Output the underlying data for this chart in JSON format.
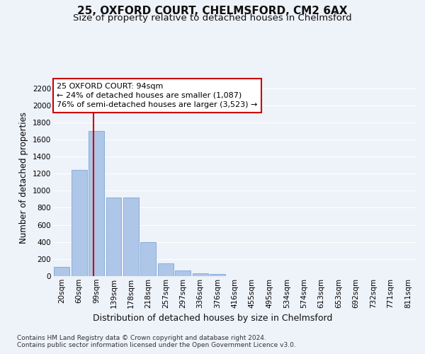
{
  "title1": "25, OXFORD COURT, CHELMSFORD, CM2 6AX",
  "title2": "Size of property relative to detached houses in Chelmsford",
  "xlabel": "Distribution of detached houses by size in Chelmsford",
  "ylabel": "Number of detached properties",
  "annotation_title": "25 OXFORD COURT: 94sqm",
  "annotation_line1": "← 24% of detached houses are smaller (1,087)",
  "annotation_line2": "76% of semi-detached houses are larger (3,523) →",
  "footer1": "Contains HM Land Registry data © Crown copyright and database right 2024.",
  "footer2": "Contains public sector information licensed under the Open Government Licence v3.0.",
  "categories": [
    "20sqm",
    "60sqm",
    "99sqm",
    "139sqm",
    "178sqm",
    "218sqm",
    "257sqm",
    "297sqm",
    "336sqm",
    "376sqm",
    "416sqm",
    "455sqm",
    "495sqm",
    "534sqm",
    "574sqm",
    "613sqm",
    "653sqm",
    "692sqm",
    "732sqm",
    "771sqm",
    "811sqm"
  ],
  "values": [
    110,
    1240,
    1700,
    920,
    920,
    400,
    150,
    65,
    35,
    25,
    0,
    0,
    0,
    0,
    0,
    0,
    0,
    0,
    0,
    0,
    0
  ],
  "bar_color": "#aec6e8",
  "bar_edge_color": "#7ba7d4",
  "vline_color": "#cc0000",
  "annotation_box_color": "#cc0000",
  "ylim": [
    0,
    2300
  ],
  "yticks": [
    0,
    200,
    400,
    600,
    800,
    1000,
    1200,
    1400,
    1600,
    1800,
    2000,
    2200
  ],
  "bg_color": "#eef2f9",
  "plot_bg_color": "#eef2f9",
  "title1_fontsize": 11,
  "title2_fontsize": 9.5,
  "ylabel_fontsize": 8.5,
  "xlabel_fontsize": 9,
  "annot_fontsize": 8,
  "tick_fontsize": 7.5,
  "footer_fontsize": 6.5,
  "grid_color": "#ffffff"
}
